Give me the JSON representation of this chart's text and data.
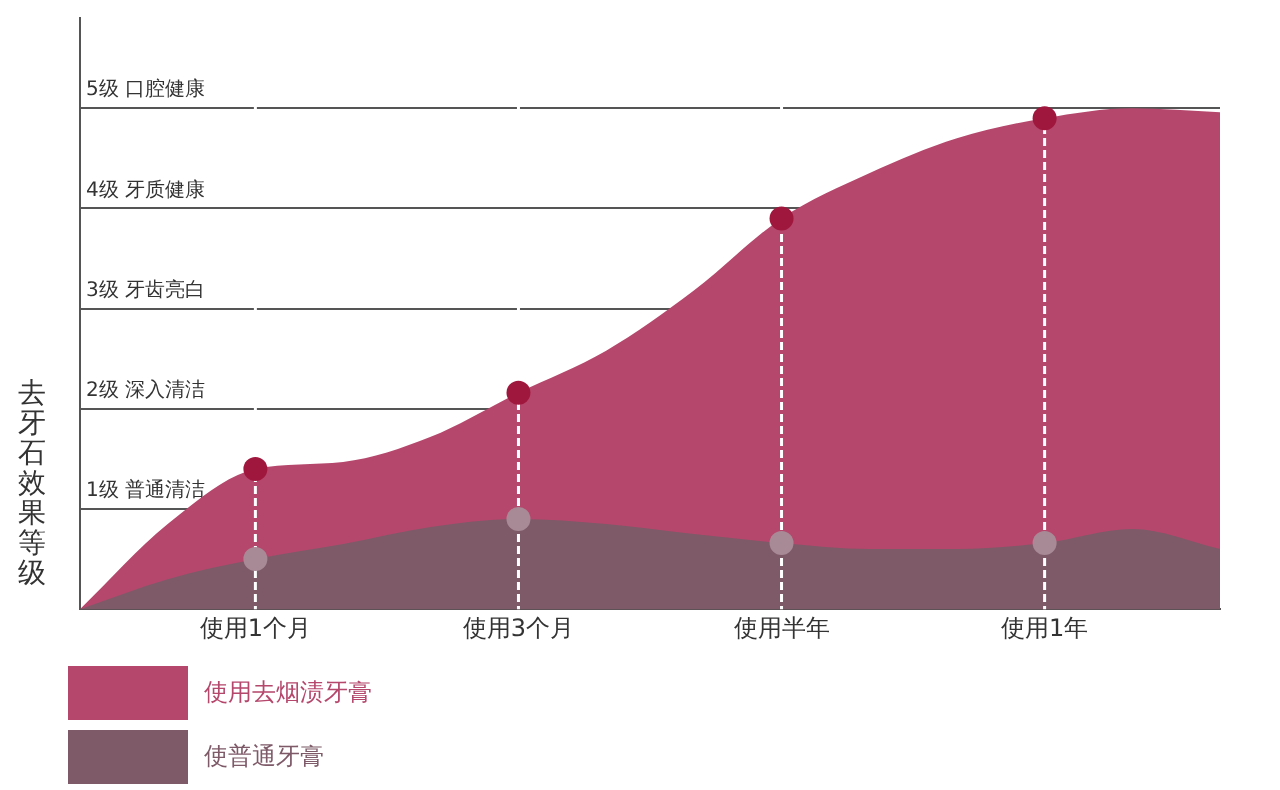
{
  "chart_data": {
    "type": "area",
    "ylabel": "去牙石效果等级",
    "categories": [
      null,
      null,
      "使用1个月",
      null,
      null,
      "使用3个月",
      null,
      null,
      "使用半年",
      null,
      null,
      "使用1年",
      null,
      null
    ],
    "ylim": [
      0,
      5.9
    ],
    "yticks": [
      {
        "value": 1,
        "label": "1级 普通清洁"
      },
      {
        "value": 2,
        "label": "2级 深入清洁"
      },
      {
        "value": 3,
        "label": "3级 牙齿亮白"
      },
      {
        "value": 4,
        "label": "4级 牙质健康"
      },
      {
        "value": 5,
        "label": "5级 口腔健康"
      }
    ],
    "grid": "y",
    "legend": "bottom left",
    "ref_lines": [
      {
        "axis": "x",
        "value": "使用1个月",
        "color": "#ffffff",
        "line_style": "dashed"
      },
      {
        "axis": "x",
        "value": "使用3个月",
        "color": "#ffffff",
        "line_style": "dashed"
      },
      {
        "axis": "x",
        "value": "使用半年",
        "color": "#ffffff",
        "line_style": "dashed"
      },
      {
        "axis": "x",
        "value": "使用1年",
        "color": "#ffffff",
        "line_style": "dashed"
      }
    ],
    "series": [
      {
        "name": "使用去烟渍牙膏",
        "color": "#b5476c",
        "values": [
          0,
          0.85,
          1.4,
          1.47,
          1.72,
          2.16,
          2.58,
          3.18,
          3.9,
          4.35,
          4.7,
          4.9,
          5,
          4.96
        ]
      },
      {
        "name": "使普通牙膏",
        "color": "#7e5a68",
        "values": [
          0,
          0.3,
          0.5,
          0.65,
          0.82,
          0.9,
          0.85,
          0.75,
          0.66,
          0.6,
          0.6,
          0.66,
          0.8,
          0.6
        ]
      },
      {
        "type": "scatter",
        "color": "#a0173e",
        "x": [
          "使用1个月",
          "使用3个月",
          "使用半年",
          "使用1年"
        ],
        "values": [
          1.4,
          2.16,
          3.9,
          4.9
        ]
      },
      {
        "type": "scatter",
        "color": "#a88a96",
        "x": [
          "使用1个月",
          "使用3个月",
          "使用半年",
          "使用1年"
        ],
        "values": [
          0.5,
          0.9,
          0.66,
          0.66
        ]
      }
    ]
  }
}
